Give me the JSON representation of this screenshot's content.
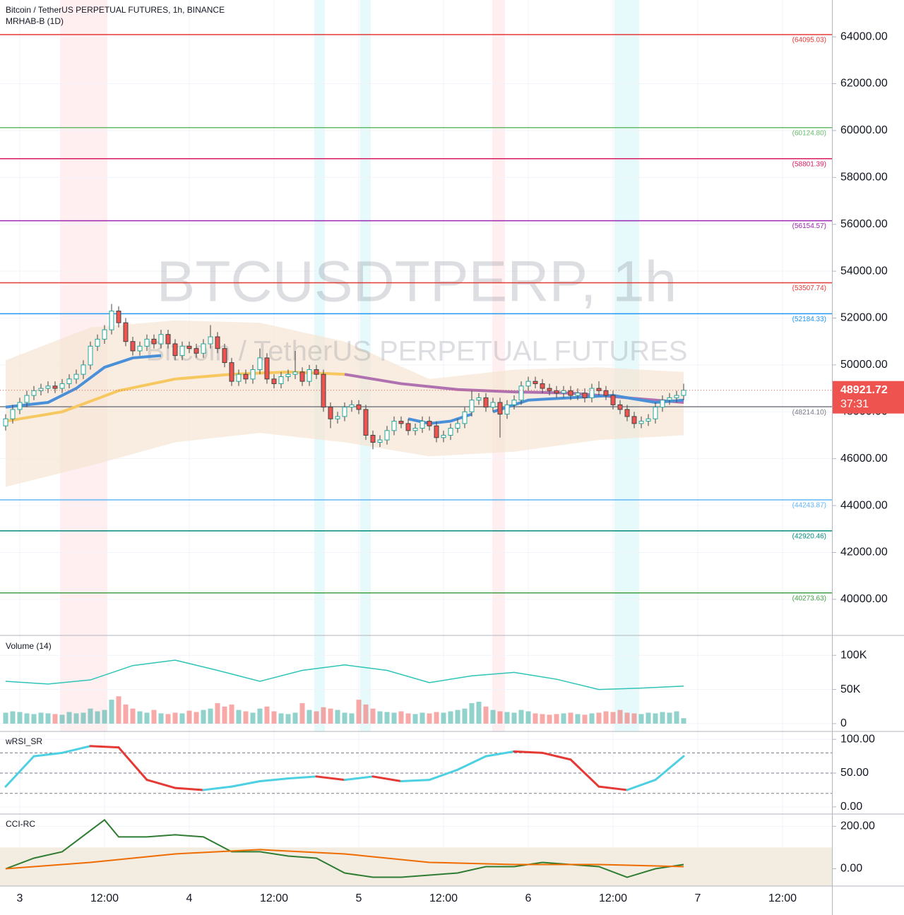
{
  "chart_data": [
    {
      "type": "candlestick",
      "title": "Bitcoin / TetherUS PERPETUAL FUTURES, 1h, BINANCE",
      "subtitle": "MRHAB-B (1D)",
      "watermark": "BTCUSDTPERP, 1h",
      "watermark_subtitle": "Bitcoin / TetherUS PERPETUAL FUTURES",
      "up_color": "#26a69a",
      "down_color": "#ef5350",
      "xlim": [
        -2.8,
        115
      ],
      "ylim": [
        38460,
        65570
      ],
      "yticks": [
        {
          "value": 40000,
          "label": "40000.00"
        },
        {
          "value": 42000,
          "label": "42000.00"
        },
        {
          "value": 44000,
          "label": "44000.00"
        },
        {
          "value": 46000,
          "label": "46000.00"
        },
        {
          "value": 48000,
          "label": "48000.00"
        },
        {
          "value": 50000,
          "label": "50000.00"
        },
        {
          "value": 52000,
          "label": "52000.00"
        },
        {
          "value": 54000,
          "label": "54000.00"
        },
        {
          "value": 56000,
          "label": "56000.00"
        },
        {
          "value": 58000,
          "label": "58000.00"
        },
        {
          "value": 60000,
          "label": "60000.00"
        },
        {
          "value": 62000,
          "label": "62000.00"
        },
        {
          "value": 64000,
          "label": "64000.00"
        }
      ],
      "levels": [
        {
          "value": 64095.03,
          "label": "(64095.03)",
          "color": "#e53935"
        },
        {
          "value": 60124.8,
          "label": "(60124.80)",
          "color": "#66bb6a"
        },
        {
          "value": 58801.39,
          "label": "(58801.39)",
          "color": "#d81b60"
        },
        {
          "value": 56154.57,
          "label": "(56154.57)",
          "color": "#9c27b0"
        },
        {
          "value": 53507.74,
          "label": "(53507.74)",
          "color": "#e53935"
        },
        {
          "value": 52184.33,
          "label": "(52184.33)",
          "color": "#2196f3"
        },
        {
          "value": 48214.1,
          "label": "(48214.10)",
          "color": "#787b86"
        },
        {
          "value": 44243.87,
          "label": "(44243.87)",
          "color": "#64b5f6"
        },
        {
          "value": 42920.46,
          "label": "(42920.46)",
          "color": "#00897b"
        },
        {
          "value": 40273.63,
          "label": "(40273.63)",
          "color": "#43a047"
        }
      ],
      "last_price": {
        "value": 48921.72,
        "countdown": "37:31"
      },
      "highlights": [
        {
          "from": 5.7,
          "to": 12.4,
          "color": "#ffebee"
        },
        {
          "from": 41.7,
          "to": 43.2,
          "color": "#e0f7fa"
        },
        {
          "from": 48.2,
          "to": 49.7,
          "color": "#e0f7fa"
        },
        {
          "from": 66.9,
          "to": 68.7,
          "color": "#ffebee"
        },
        {
          "from": 84.2,
          "to": 87.7,
          "color": "#e0f7fa"
        }
      ],
      "band": {
        "color": "#f5e6d3",
        "x": [
          -2,
          10,
          22,
          34,
          46,
          58,
          70,
          82,
          94
        ],
        "upper": [
          50200,
          51600,
          51900,
          51800,
          51000,
          49400,
          49800,
          49900,
          49700
        ],
        "lower": [
          44800,
          45700,
          46700,
          47100,
          46700,
          46100,
          46300,
          46800,
          47000
        ]
      },
      "lines": [
        {
          "color": "#f6c85f",
          "x": [
            -2,
            6,
            14,
            22,
            30,
            38,
            46
          ],
          "values": [
            47600,
            48000,
            48900,
            49400,
            49600,
            49700,
            49600
          ]
        },
        {
          "color": "#b071b0",
          "x": [
            46,
            54,
            62,
            70,
            78,
            86,
            94
          ],
          "values": [
            49600,
            49200,
            48950,
            48850,
            48800,
            48600,
            48400
          ]
        },
        {
          "color": "#4a90d9",
          "x": [
            -2,
            4,
            8,
            12,
            16,
            20
          ],
          "values": [
            48200,
            48400,
            49000,
            49900,
            50300,
            50400
          ]
        },
        {
          "color": "#4a90d9",
          "x": [
            55,
            58,
            61,
            64
          ],
          "values": [
            47700,
            47500,
            47600,
            47900
          ]
        },
        {
          "color": "#4a90d9",
          "x": [
            67,
            72,
            78,
            84,
            90,
            94
          ],
          "values": [
            48000,
            48500,
            48600,
            48700,
            48400,
            48500
          ]
        }
      ],
      "x": [
        -2,
        -1,
        0,
        1,
        2,
        3,
        4,
        5,
        6,
        7,
        8,
        9,
        10,
        11,
        12,
        13,
        14,
        15,
        16,
        17,
        18,
        19,
        20,
        21,
        22,
        23,
        24,
        25,
        26,
        27,
        28,
        29,
        30,
        31,
        32,
        33,
        34,
        35,
        36,
        37,
        38,
        39,
        40,
        41,
        42,
        43,
        44,
        45,
        46,
        47,
        48,
        49,
        50,
        51,
        52,
        53,
        54,
        55,
        56,
        57,
        58,
        59,
        60,
        61,
        62,
        63,
        64,
        65,
        66,
        67,
        68,
        69,
        70,
        71,
        72,
        73,
        74,
        75,
        76,
        77,
        78,
        79,
        80,
        81,
        82,
        83,
        84,
        85,
        86,
        87,
        88,
        89,
        90,
        91,
        92,
        93,
        94
      ],
      "open": [
        47400,
        47700,
        48100,
        48400,
        48700,
        48900,
        49000,
        49100,
        49000,
        49200,
        49400,
        49600,
        50000,
        50800,
        51100,
        51500,
        52300,
        51800,
        51000,
        50600,
        50800,
        51100,
        50900,
        51300,
        50900,
        50400,
        50800,
        50700,
        50500,
        50900,
        51200,
        50700,
        50100,
        49300,
        49600,
        49400,
        49800,
        50300,
        49400,
        49200,
        49500,
        49600,
        49700,
        49300,
        49800,
        49600,
        48200,
        47700,
        47800,
        48200,
        48300,
        48100,
        47000,
        46700,
        46800,
        47200,
        47600,
        47500,
        47200,
        47300,
        47600,
        47400,
        46900,
        47000,
        47300,
        47500,
        48000,
        48500,
        48600,
        48200,
        48400,
        47900,
        48300,
        48500,
        49100,
        49300,
        49200,
        49000,
        48900,
        48800,
        48900,
        48700,
        48800,
        48600,
        49000,
        48900,
        48700,
        48300,
        48100,
        47800,
        47500,
        47600,
        47700,
        48200,
        48500,
        48600,
        48700
      ],
      "high": [
        47900,
        48300,
        48600,
        48900,
        49100,
        49200,
        49300,
        49300,
        49400,
        49600,
        49800,
        50200,
        51000,
        51300,
        51700,
        52600,
        52500,
        52000,
        51200,
        51000,
        51300,
        51300,
        51500,
        51500,
        51100,
        51000,
        51000,
        50900,
        51100,
        51700,
        51400,
        50900,
        50300,
        49800,
        49800,
        50000,
        50700,
        50500,
        49600,
        49700,
        49800,
        50600,
        49900,
        50000,
        50000,
        49800,
        48400,
        48000,
        48400,
        48500,
        48500,
        48300,
        47200,
        47000,
        47400,
        47800,
        47800,
        47700,
        47500,
        47800,
        47800,
        47600,
        47200,
        47500,
        47700,
        48200,
        48900,
        48800,
        48800,
        48600,
        48600,
        48500,
        48700,
        49300,
        49500,
        49500,
        49400,
        49200,
        49100,
        49100,
        49100,
        49000,
        49000,
        49200,
        49300,
        49100,
        48900,
        48500,
        48300,
        48000,
        47800,
        47900,
        48400,
        48700,
        48800,
        48900,
        49200
      ],
      "low": [
        47200,
        47500,
        47900,
        48200,
        48500,
        48700,
        48800,
        48800,
        48800,
        49000,
        49200,
        49400,
        49800,
        50600,
        50900,
        51300,
        51600,
        50800,
        50400,
        50400,
        50600,
        50700,
        50700,
        50700,
        50200,
        50200,
        50500,
        50300,
        50300,
        50700,
        50500,
        49900,
        49100,
        49100,
        49200,
        49200,
        49600,
        49200,
        49000,
        49000,
        49300,
        49400,
        49100,
        49100,
        49400,
        48000,
        47300,
        47500,
        47600,
        48000,
        47900,
        46800,
        46400,
        46500,
        46600,
        47000,
        47300,
        47000,
        47000,
        47100,
        47200,
        46700,
        46700,
        46800,
        47100,
        47300,
        47800,
        48300,
        48000,
        48000,
        46900,
        47700,
        48100,
        48300,
        48900,
        49000,
        48800,
        48700,
        48600,
        48600,
        48500,
        48500,
        48400,
        48400,
        48700,
        48500,
        48100,
        47900,
        47600,
        47300,
        47300,
        47400,
        47500,
        48000,
        48300,
        48400,
        48500
      ],
      "close": [
        47700,
        48100,
        48400,
        48700,
        48900,
        49000,
        49100,
        49000,
        49200,
        49400,
        49600,
        50000,
        50800,
        51100,
        51500,
        52300,
        51800,
        51000,
        50600,
        50800,
        51100,
        50900,
        51300,
        50900,
        50400,
        50800,
        50700,
        50500,
        50900,
        51200,
        50700,
        50100,
        49300,
        49600,
        49400,
        49800,
        50300,
        49400,
        49200,
        49500,
        49600,
        49700,
        49300,
        49800,
        49600,
        48200,
        47700,
        47800,
        48200,
        48300,
        48100,
        47000,
        46700,
        46800,
        47200,
        47600,
        47500,
        47200,
        47300,
        47600,
        47400,
        46900,
        47000,
        47300,
        47500,
        48000,
        48500,
        48600,
        48200,
        48400,
        47900,
        48300,
        48500,
        49100,
        49300,
        49200,
        49000,
        48900,
        48800,
        48900,
        48700,
        48800,
        48600,
        49000,
        48900,
        48700,
        48300,
        48100,
        47800,
        47500,
        47600,
        47700,
        48200,
        48500,
        48600,
        48700,
        48920
      ]
    },
    {
      "type": "bar",
      "title": "Volume (14)",
      "xlim": [
        -2.8,
        115
      ],
      "ylim": [
        -11460,
        129170
      ],
      "yticks": [
        0,
        {
          "value": 50000,
          "label": "50K"
        },
        {
          "value": 100000,
          "label": "100K"
        }
      ],
      "values": [
        16000,
        18000,
        17000,
        15000,
        14000,
        16000,
        15000,
        14000,
        13000,
        17000,
        15000,
        16000,
        22000,
        18000,
        20000,
        35000,
        40000,
        28000,
        22000,
        18000,
        16000,
        20000,
        15000,
        14000,
        16000,
        15000,
        19000,
        17000,
        20000,
        22000,
        30000,
        25000,
        28000,
        20000,
        18000,
        16000,
        22000,
        25000,
        18000,
        15000,
        14000,
        16000,
        30000,
        20000,
        18000,
        24000,
        22000,
        20000,
        16000,
        15000,
        35000,
        28000,
        22000,
        18000,
        17000,
        16000,
        18000,
        15000,
        14000,
        16000,
        15000,
        17000,
        16000,
        18000,
        20000,
        22000,
        30000,
        32000,
        25000,
        20000,
        18000,
        17000,
        16000,
        20000,
        18000,
        15000,
        14000,
        13000,
        14000,
        15000,
        16000,
        14000,
        13000,
        15000,
        16000,
        18000,
        17000,
        20000,
        16000,
        15000,
        14000,
        16000,
        15000,
        17000,
        16000,
        18000,
        8000
      ],
      "lines": [
        {
          "color": "#2ec4b6",
          "x": [
            -2,
            4,
            10,
            16,
            22,
            28,
            34,
            40,
            46,
            52,
            58,
            64,
            70,
            76,
            82,
            88,
            94
          ],
          "values": [
            62000,
            58000,
            64000,
            85000,
            93000,
            78000,
            62000,
            78000,
            86000,
            78000,
            60000,
            70000,
            75000,
            65000,
            50000,
            52000,
            55000
          ]
        }
      ]
    },
    {
      "type": "line",
      "title": "wRSI_SR",
      "xlim": [
        -2.8,
        115
      ],
      "ylim": [
        -10.6,
        111.7
      ],
      "yticks": [
        {
          "value": 0,
          "label": "0.00"
        },
        {
          "value": 50,
          "label": "50.00"
        },
        {
          "value": 100,
          "label": "100.00"
        }
      ],
      "levels": [
        20,
        50,
        80
      ],
      "rise_color": "#4dd0e1",
      "fall_color": "#e53935",
      "x": [
        -2,
        2,
        6,
        10,
        14,
        18,
        22,
        26,
        30,
        34,
        38,
        42,
        46,
        50,
        54,
        58,
        62,
        66,
        70,
        74,
        78,
        82,
        86,
        90,
        94
      ],
      "values": [
        30,
        75,
        80,
        90,
        88,
        40,
        28,
        25,
        30,
        38,
        42,
        45,
        40,
        45,
        38,
        40,
        55,
        75,
        82,
        80,
        70,
        30,
        25,
        40,
        75
      ]
    },
    {
      "type": "line",
      "title": "CCI-RC",
      "xlim": [
        -2.8,
        115
      ],
      "ylim": [
        -81.4,
        257.6
      ],
      "yticks": [
        {
          "value": 0,
          "label": "0.00"
        },
        {
          "value": 200,
          "label": "200.00"
        }
      ],
      "band": [
        -100,
        100
      ],
      "xticks": [
        {
          "value": 0,
          "label": "3"
        },
        {
          "value": 12,
          "label": "12:00"
        },
        {
          "value": 24,
          "label": "4"
        },
        {
          "value": 36,
          "label": "12:00"
        },
        {
          "value": 48,
          "label": "5"
        },
        {
          "value": 60,
          "label": "12:00"
        },
        {
          "value": 72,
          "label": "6"
        },
        {
          "value": 84,
          "label": "12:00"
        },
        {
          "value": 96,
          "label": "7"
        },
        {
          "value": 108,
          "label": "12:00"
        }
      ],
      "series": [
        {
          "color": "#2e7d32",
          "x": [
            -2,
            2,
            6,
            10,
            12,
            14,
            18,
            22,
            26,
            30,
            34,
            38,
            42,
            46,
            50,
            54,
            58,
            62,
            66,
            70,
            74,
            78,
            82,
            86,
            90,
            94
          ],
          "values": [
            0,
            50,
            80,
            180,
            230,
            150,
            150,
            160,
            150,
            80,
            80,
            60,
            50,
            -20,
            -40,
            -40,
            -30,
            -20,
            10,
            10,
            30,
            20,
            10,
            -40,
            0,
            20
          ]
        },
        {
          "color": "#ef6c00",
          "x": [
            -2,
            10,
            22,
            34,
            46,
            58,
            70,
            82,
            94
          ],
          "values": [
            0,
            30,
            70,
            90,
            70,
            30,
            20,
            20,
            10
          ]
        }
      ]
    }
  ]
}
